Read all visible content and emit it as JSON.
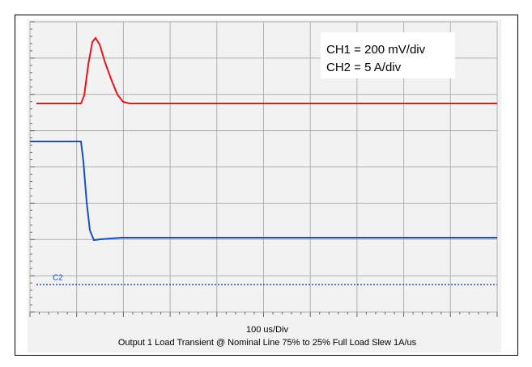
{
  "annotation": {
    "lines": [
      "CH1 = 200 mV/div",
      "CH2 = 5 A/div"
    ]
  },
  "channel_label": "C2",
  "x_label": "100 us/Div",
  "caption": "Output 1 Load Transient @ Nominal Line 75% to 25% Full Load Slew 1A/us"
}
